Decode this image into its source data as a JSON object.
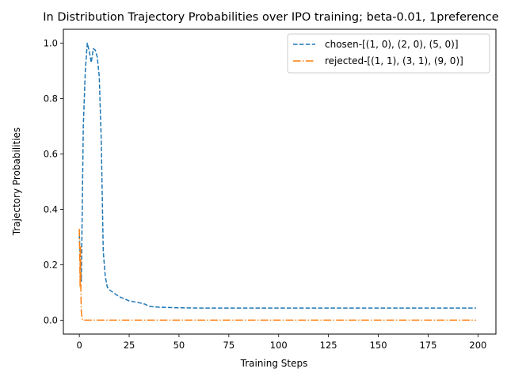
{
  "chart_data": {
    "type": "line",
    "title": "In Distribution Trajectory Probabilities over IPO training;  beta-0.01, 1preference",
    "xlabel": "Training Steps",
    "ylabel": "Trajectory Probabilities",
    "xlim": [
      -8,
      209
    ],
    "ylim": [
      -0.05,
      1.05
    ],
    "xticks": [
      0,
      25,
      50,
      75,
      100,
      125,
      150,
      175,
      200
    ],
    "yticks": [
      0.0,
      0.2,
      0.4,
      0.6,
      0.8,
      1.0
    ],
    "ytick_labels": [
      "0.0",
      "0.2",
      "0.4",
      "0.6",
      "0.8",
      "1.0"
    ],
    "legend_position": "top-right",
    "series": [
      {
        "name": "chosen-[(1, 0), (2, 0), (5, 0)]",
        "color": "#1f77b4",
        "style": "dashed",
        "x": [
          0,
          0.5,
          1,
          2,
          3,
          4,
          5,
          6,
          7,
          8,
          9,
          10,
          11,
          12,
          13,
          14,
          15,
          17,
          20,
          25,
          30,
          33,
          35,
          40,
          50,
          60,
          80,
          100,
          125,
          150,
          175,
          199
        ],
        "y": [
          0.31,
          0.22,
          0.14,
          0.7,
          0.9,
          1.0,
          0.97,
          0.93,
          0.98,
          0.975,
          0.95,
          0.88,
          0.65,
          0.25,
          0.16,
          0.12,
          0.11,
          0.1,
          0.085,
          0.07,
          0.063,
          0.058,
          0.05,
          0.047,
          0.045,
          0.044,
          0.044,
          0.044,
          0.044,
          0.044,
          0.044,
          0.044
        ]
      },
      {
        "name": "rejected-[(1, 1), (3, 1), (9, 0)]",
        "color": "#ff7f0e",
        "style": "dashdot",
        "x": [
          0,
          0.2,
          0.4,
          0.6,
          0.8,
          1,
          1.5,
          2,
          5,
          25,
          50,
          100,
          150,
          199
        ],
        "y": [
          0.33,
          0.24,
          0.12,
          0.27,
          0.1,
          0.03,
          0.001,
          0.0005,
          0.0003,
          0.0003,
          0.0003,
          0.0003,
          0.0003,
          0.0003
        ]
      }
    ]
  }
}
